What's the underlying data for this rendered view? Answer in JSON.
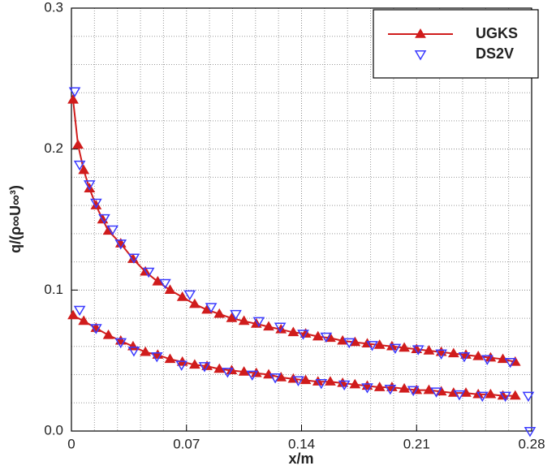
{
  "chart_data": {
    "type": "line",
    "x_label": "x/m",
    "y_label": "q/(ρ∞U∞³)",
    "xlim": [
      0,
      0.28
    ],
    "ylim": [
      0,
      0.3
    ],
    "xticks": [
      0,
      0.07,
      0.14,
      0.21,
      0.28
    ],
    "yticks": [
      {
        "value": 0,
        "label": "0.0"
      },
      {
        "value": 0.1,
        "label": "0.1"
      },
      {
        "value": 0.2,
        "label": "0.2"
      },
      {
        "value": 0.3,
        "label": "0.3"
      }
    ],
    "x_minor_ticks": [
      0.014,
      0.028,
      0.042,
      0.056,
      0.084,
      0.098,
      0.112,
      0.126,
      0.154,
      0.168,
      0.182,
      0.196,
      0.224,
      0.238,
      0.252,
      0.266
    ],
    "y_minor_ticks": [
      0.02,
      0.04,
      0.06,
      0.08,
      0.12,
      0.14,
      0.16,
      0.18,
      0.22,
      0.24,
      0.26,
      0.28
    ],
    "grid": true,
    "legend": "top-right",
    "series": [
      {
        "name": "UGKS",
        "color": "#d01c1c",
        "marker": "triangle-up",
        "line": true,
        "curves": [
          {
            "x": [
              0.001,
              0.004,
              0.0075,
              0.011,
              0.015,
              0.019,
              0.0225,
              0.03,
              0.0375,
              0.045,
              0.0525,
              0.06,
              0.0675,
              0.075,
              0.0825,
              0.09,
              0.0975,
              0.105,
              0.1125,
              0.12,
              0.1275,
              0.135,
              0.1425,
              0.15,
              0.1575,
              0.165,
              0.1725,
              0.18,
              0.1875,
              0.195,
              0.2025,
              0.21,
              0.2175,
              0.225,
              0.2325,
              0.24,
              0.2475,
              0.255,
              0.2625,
              0.27
            ],
            "values": [
              0.235,
              0.203,
              0.185,
              0.172,
              0.16,
              0.15,
              0.142,
              0.133,
              0.122,
              0.113,
              0.106,
              0.1,
              0.095,
              0.09,
              0.086,
              0.083,
              0.08,
              0.078,
              0.076,
              0.074,
              0.072,
              0.07,
              0.069,
              0.067,
              0.066,
              0.064,
              0.063,
              0.062,
              0.061,
              0.06,
              0.059,
              0.058,
              0.057,
              0.056,
              0.055,
              0.054,
              0.053,
              0.052,
              0.051,
              0.049
            ]
          },
          {
            "x": [
              0.001,
              0.0075,
              0.015,
              0.0225,
              0.03,
              0.0375,
              0.045,
              0.0525,
              0.06,
              0.0675,
              0.075,
              0.0825,
              0.09,
              0.0975,
              0.105,
              0.1125,
              0.12,
              0.1275,
              0.135,
              0.1425,
              0.15,
              0.1575,
              0.165,
              0.1725,
              0.18,
              0.1875,
              0.195,
              0.2025,
              0.21,
              0.2175,
              0.225,
              0.2325,
              0.24,
              0.2475,
              0.255,
              0.2625,
              0.27
            ],
            "values": [
              0.082,
              0.078,
              0.073,
              0.068,
              0.064,
              0.06,
              0.056,
              0.054,
              0.051,
              0.049,
              0.047,
              0.046,
              0.044,
              0.043,
              0.042,
              0.041,
              0.04,
              0.038,
              0.037,
              0.036,
              0.035,
              0.035,
              0.034,
              0.033,
              0.032,
              0.031,
              0.031,
              0.03,
              0.029,
              0.029,
              0.028,
              0.027,
              0.027,
              0.026,
              0.026,
              0.025,
              0.025
            ]
          }
        ]
      },
      {
        "name": "DS2V",
        "color": "#3a3aff",
        "marker": "triangle-down",
        "line": false,
        "curves": [
          {
            "x": [
              0.002,
              0.005,
              0.011,
              0.015,
              0.02,
              0.025,
              0.03,
              0.038,
              0.047,
              0.057,
              0.072,
              0.085,
              0.1,
              0.114,
              0.127,
              0.141,
              0.155,
              0.169,
              0.183,
              0.197,
              0.211,
              0.225,
              0.239,
              0.253,
              0.267
            ],
            "values": [
              0.241,
              0.189,
              0.175,
              0.162,
              0.151,
              0.143,
              0.133,
              0.123,
              0.113,
              0.105,
              0.097,
              0.088,
              0.083,
              0.078,
              0.074,
              0.069,
              0.067,
              0.063,
              0.061,
              0.059,
              0.058,
              0.055,
              0.053,
              0.051,
              0.049
            ]
          },
          {
            "x": [
              0.005,
              0.015,
              0.03,
              0.038,
              0.052,
              0.067,
              0.081,
              0.095,
              0.11,
              0.124,
              0.138,
              0.152,
              0.166,
              0.18,
              0.194,
              0.208,
              0.222,
              0.236,
              0.25,
              0.264,
              0.278,
              0.279
            ],
            "values": [
              0.086,
              0.073,
              0.063,
              0.057,
              0.053,
              0.047,
              0.046,
              0.042,
              0.04,
              0.038,
              0.036,
              0.034,
              0.033,
              0.031,
              0.03,
              0.029,
              0.028,
              0.026,
              0.025,
              0.025,
              0.025,
              0
            ]
          }
        ]
      }
    ]
  }
}
